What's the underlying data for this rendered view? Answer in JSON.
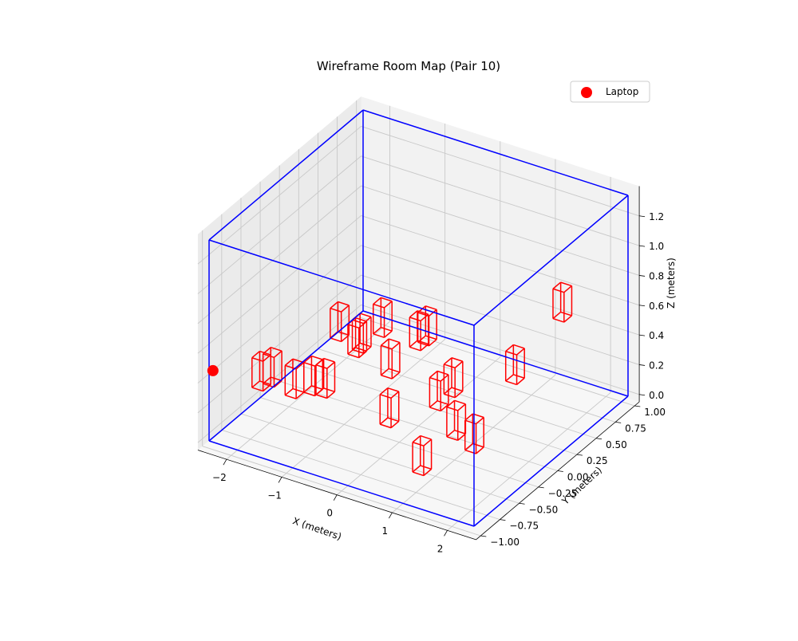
{
  "chart_data": {
    "type": "scatter",
    "title": "Wireframe Room Map (Pair 10)",
    "xlabel": "X (meters)",
    "ylabel": "Y (meters)",
    "zlabel": "Z (meters)",
    "xlim": [
      -2.4,
      2.4
    ],
    "ylim": [
      -1.0,
      1.0
    ],
    "zlim": [
      0.0,
      1.35
    ],
    "xticks": [
      -2,
      -1,
      0,
      1,
      2
    ],
    "xtick_labels": [
      "−2",
      "−1",
      "0",
      "1",
      "2"
    ],
    "yticks": [
      -1.0,
      -0.75,
      -0.5,
      -0.25,
      0.0,
      0.25,
      0.5,
      0.75,
      1.0
    ],
    "ytick_labels": [
      "−1.00",
      "−0.75",
      "−0.50",
      "−0.25",
      "0.00",
      "0.25",
      "0.50",
      "0.75",
      "1.00"
    ],
    "zticks": [
      0.0,
      0.2,
      0.4,
      0.6,
      0.8,
      1.0,
      1.2
    ],
    "ztick_labels": [
      "0.0",
      "0.2",
      "0.4",
      "0.6",
      "0.8",
      "1.0",
      "1.2"
    ],
    "grid": true,
    "legend": {
      "position": "upper-right",
      "entries": [
        "Laptop"
      ]
    },
    "room_box": {
      "color": "#0000ff",
      "x": [
        -2.4,
        2.4
      ],
      "y": [
        -1.0,
        1.0
      ],
      "z": [
        0.0,
        1.35
      ]
    },
    "series": [
      {
        "name": "Laptop",
        "marker": "circle",
        "color": "#ff0000",
        "points": [
          {
            "x": -2.4,
            "y": -0.95,
            "z": 0.45
          }
        ]
      }
    ],
    "objects": {
      "color": "#ff0000",
      "size": [
        0.2,
        0.1,
        0.2
      ],
      "centers": [
        [
          -2.15,
          -0.5,
          0.28
        ],
        [
          -1.95,
          -0.5,
          0.33
        ],
        [
          -1.55,
          -0.5,
          0.3
        ],
        [
          -1.35,
          -0.4,
          0.3
        ],
        [
          -1.2,
          -0.35,
          0.28
        ],
        [
          -1.5,
          0.05,
          0.45
        ],
        [
          -1.25,
          0.1,
          0.35
        ],
        [
          -1.1,
          0.05,
          0.42
        ],
        [
          -1.0,
          0.25,
          0.45
        ],
        [
          -0.55,
          0.4,
          0.35
        ],
        [
          -0.4,
          0.4,
          0.4
        ],
        [
          -0.65,
          0.1,
          0.28
        ],
        [
          0.1,
          -0.45,
          0.28
        ],
        [
          0.65,
          -0.2,
          0.35
        ],
        [
          0.7,
          -0.05,
          0.38
        ],
        [
          1.1,
          -0.3,
          0.25
        ],
        [
          1.5,
          -0.35,
          0.23
        ],
        [
          1.4,
          0.25,
          0.42
        ],
        [
          1.35,
          0.9,
          0.55
        ],
        [
          0.9,
          -0.6,
          0.12
        ]
      ]
    }
  }
}
